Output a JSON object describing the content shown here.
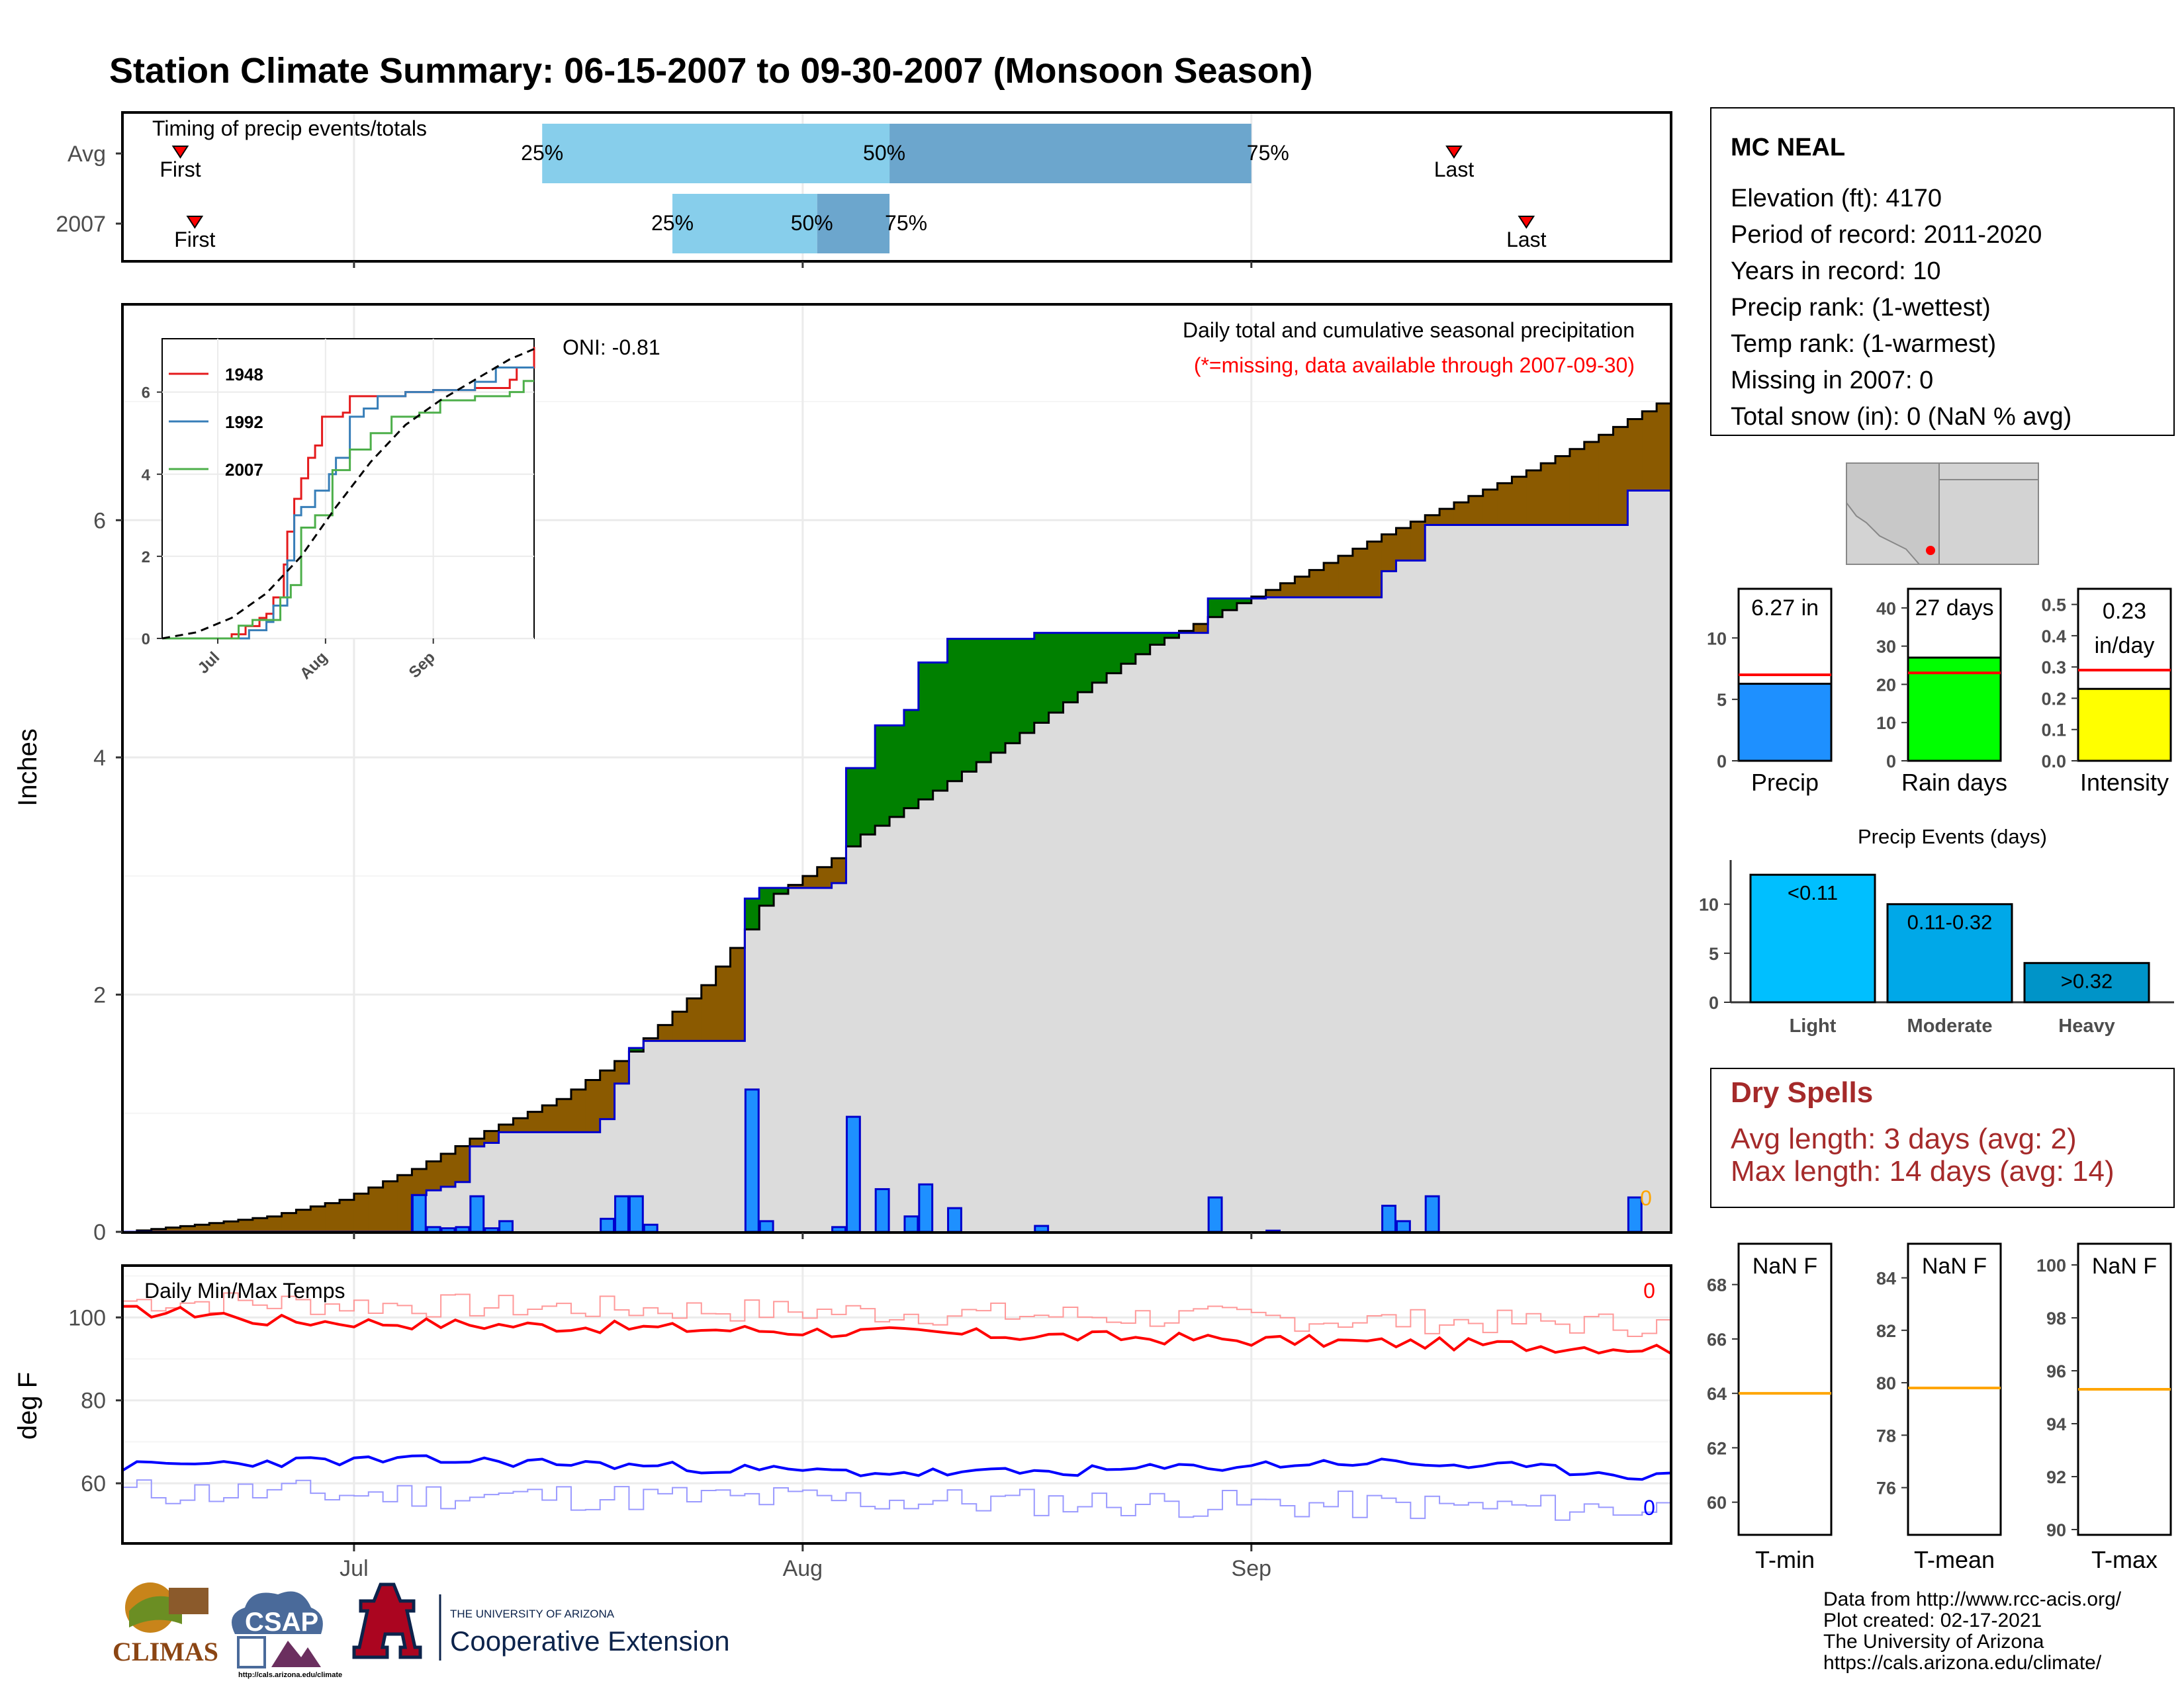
{
  "title": "Station Climate Summary: 06-15-2007 to 09-30-2007 (Monsoon Season)",
  "colors": {
    "title": "#ff0000",
    "brown_area": "#8b5a00",
    "green_area": "#008000",
    "gray_area": "#dcdcdc",
    "blue_line": "#0000cd",
    "precip_bar": "#1e90ff",
    "rain_days_bar": "#00ff00",
    "intensity_bar": "#ffff00",
    "avg_line": "#ff0000",
    "light_bar": "#00bfff",
    "moderate_bar": "#00a8e8",
    "heavy_bar": "#0094c8",
    "orange": "#ffa500",
    "dry_spells": "#a52a2a",
    "timing_25_50": "#87ceeb",
    "timing_50_75": "#6ca6cd",
    "tmax_line": "#ff0000",
    "tmin_line": "#0000ff"
  },
  "timing": {
    "label": "Timing of precip events/totals",
    "rows": [
      {
        "name": "Avg",
        "first_label": "First",
        "last_label": "Last",
        "first_date": "2007-06-19",
        "q25": "2007-07-14",
        "q50": "2007-08-07",
        "q75": "2007-09-01",
        "last_date": "2007-09-15",
        "p25_label": "25%",
        "p50_label": "50%",
        "p75_label": "75%"
      },
      {
        "name": "2007",
        "first_label": "First",
        "last_label": "Last",
        "first_date": "2007-06-20",
        "q25": "2007-07-23",
        "q50": "2007-08-02",
        "q75": "2007-08-07",
        "last_date": "2007-09-20",
        "p25_label": "25%",
        "p50_label": "50%",
        "p75_label": "75%"
      }
    ]
  },
  "main": {
    "ylabel": "Inches",
    "oni": "ONI: -0.81",
    "note1": "Daily total and cumulative seasonal precipitation",
    "note2": "(*=missing, data available through 2007-09-30)",
    "missing_count": "0",
    "y_ticks": [
      "0",
      "2",
      "4",
      "6"
    ],
    "x_ticks": [
      "Jul",
      "Aug",
      "Sep"
    ]
  },
  "inset": {
    "legend": [
      "1948",
      "1992",
      "2007"
    ],
    "y_ticks": [
      "0",
      "2",
      "4",
      "6"
    ],
    "x_ticks": [
      "Jul",
      "Aug",
      "Sep"
    ]
  },
  "temps": {
    "label": "Daily Min/Max Temps",
    "ylabel": "deg F",
    "missing_max": "0",
    "missing_min": "0",
    "y_ticks": [
      "60",
      "80",
      "100"
    ],
    "x_ticks": [
      "Jul",
      "Aug",
      "Sep"
    ]
  },
  "station": {
    "name": "MC NEAL",
    "lines": [
      "Elevation (ft): 4170",
      "Period of record: 2011-2020",
      "Years in record: 10",
      "Precip rank:  (1-wettest)",
      "Temp rank:  (1-warmest)",
      "Missing in 2007: 0",
      "Total snow (in): 0 (NaN % avg)"
    ]
  },
  "summary_bars": [
    {
      "name": "Precip",
      "label": "6.27 in",
      "value": 6.27,
      "avg": 7.0,
      "ymax": 14,
      "ticks": [
        "0",
        "5",
        "10"
      ],
      "tick_values": [
        0,
        5,
        10
      ]
    },
    {
      "name": "Rain days",
      "label": "27 days",
      "value": 27,
      "avg": 23,
      "ymax": 45,
      "ticks": [
        "0",
        "10",
        "20",
        "30",
        "40"
      ],
      "tick_values": [
        0,
        10,
        20,
        30,
        40
      ]
    },
    {
      "name": "Intensity",
      "label_line1": "0.23",
      "label_line2": "in/day",
      "value": 0.23,
      "avg": 0.29,
      "ymax": 0.55,
      "ticks": [
        "0.0",
        "0.1",
        "0.2",
        "0.3",
        "0.4",
        "0.5"
      ],
      "tick_values": [
        0,
        0.1,
        0.2,
        0.3,
        0.4,
        0.5
      ]
    }
  ],
  "events": {
    "title": "Precip Events (days)",
    "categories": [
      "Light",
      "Moderate",
      "Heavy"
    ],
    "labels": [
      "<0.11",
      "0.11-0.32",
      ">0.32"
    ],
    "values": [
      13,
      10,
      4
    ],
    "ticks": [
      "0",
      "5",
      "10"
    ]
  },
  "dry_spells": {
    "title": "Dry Spells",
    "avg": "Avg length: 3 days (avg: 2)",
    "max": "Max length: 14 days (avg: 14)"
  },
  "temp_panels": [
    {
      "name": "T-min",
      "label": "NaN F",
      "avg": 64,
      "ticks": [
        "60",
        "62",
        "64",
        "66",
        "68"
      ],
      "tick_values": [
        60,
        62,
        64,
        66,
        68
      ],
      "ymin": 58.8,
      "ymax": 69.5
    },
    {
      "name": "T-mean",
      "label": "NaN F",
      "avg": 79.8,
      "ticks": [
        "76",
        "78",
        "80",
        "82",
        "84"
      ],
      "tick_values": [
        76,
        78,
        80,
        82,
        84
      ],
      "ymin": 74.2,
      "ymax": 85.3
    },
    {
      "name": "T-max",
      "label": "NaN F",
      "avg": 95.3,
      "ticks": [
        "90",
        "92",
        "94",
        "96",
        "98",
        "100"
      ],
      "tick_values": [
        90,
        92,
        94,
        96,
        98,
        100
      ],
      "ymin": 89.8,
      "ymax": 100.8
    }
  ],
  "credits": [
    "Data from http://www.rcc-acis.org/",
    "Plot created: 02-17-2021",
    "The University of Arizona",
    "https://cals.arizona.edu/climate/"
  ],
  "logos": {
    "climas": "CLIMAS",
    "csap": "CSAP",
    "csap_url": "http://cals.arizona.edu/climate",
    "ua_small": "THE UNIVERSITY OF ARIZONA",
    "ua_big": "Cooperative Extension"
  },
  "chart_data": {
    "type": "line",
    "x_start": "2007-06-15",
    "x_end": "2007-09-30",
    "daily_precip": [
      {
        "date": "2007-07-05",
        "value": 0.31
      },
      {
        "date": "2007-07-06",
        "value": 0.04
      },
      {
        "date": "2007-07-07",
        "value": 0.03
      },
      {
        "date": "2007-07-08",
        "value": 0.04
      },
      {
        "date": "2007-07-09",
        "value": 0.3
      },
      {
        "date": "2007-07-10",
        "value": 0.03
      },
      {
        "date": "2007-07-11",
        "value": 0.09
      },
      {
        "date": "2007-07-18",
        "value": 0.11
      },
      {
        "date": "2007-07-19",
        "value": 0.3
      },
      {
        "date": "2007-07-20",
        "value": 0.3
      },
      {
        "date": "2007-07-21",
        "value": 0.06
      },
      {
        "date": "2007-07-28",
        "value": 1.2
      },
      {
        "date": "2007-07-29",
        "value": 0.09
      },
      {
        "date": "2007-08-03",
        "value": 0.04
      },
      {
        "date": "2007-08-04",
        "value": 0.97
      },
      {
        "date": "2007-08-06",
        "value": 0.36
      },
      {
        "date": "2007-08-08",
        "value": 0.13
      },
      {
        "date": "2007-08-09",
        "value": 0.4
      },
      {
        "date": "2007-08-11",
        "value": 0.2
      },
      {
        "date": "2007-08-17",
        "value": 0.05
      },
      {
        "date": "2007-08-29",
        "value": 0.29
      },
      {
        "date": "2007-09-02",
        "value": 0.01
      },
      {
        "date": "2007-09-10",
        "value": 0.22
      },
      {
        "date": "2007-09-11",
        "value": 0.09
      },
      {
        "date": "2007-09-13",
        "value": 0.3
      },
      {
        "date": "2007-09-27",
        "value": 0.29
      }
    ],
    "avg_cumulative": [
      {
        "date": "2007-06-15",
        "value": 0.0
      },
      {
        "date": "2007-06-20",
        "value": 0.06
      },
      {
        "date": "2007-06-25",
        "value": 0.13
      },
      {
        "date": "2007-06-30",
        "value": 0.27
      },
      {
        "date": "2007-07-05",
        "value": 0.53
      },
      {
        "date": "2007-07-10",
        "value": 0.85
      },
      {
        "date": "2007-07-15",
        "value": 1.12
      },
      {
        "date": "2007-07-20",
        "value": 1.52
      },
      {
        "date": "2007-07-25",
        "value": 2.08
      },
      {
        "date": "2007-07-28",
        "value": 2.55
      },
      {
        "date": "2007-07-29",
        "value": 2.75
      },
      {
        "date": "2007-07-30",
        "value": 2.85
      },
      {
        "date": "2007-08-03",
        "value": 3.15
      },
      {
        "date": "2007-08-05",
        "value": 3.35
      },
      {
        "date": "2007-08-10",
        "value": 3.72
      },
      {
        "date": "2007-08-15",
        "value": 4.12
      },
      {
        "date": "2007-08-20",
        "value": 4.55
      },
      {
        "date": "2007-08-25",
        "value": 4.95
      },
      {
        "date": "2007-08-31",
        "value": 5.3
      },
      {
        "date": "2007-09-05",
        "value": 5.58
      },
      {
        "date": "2007-09-10",
        "value": 5.88
      },
      {
        "date": "2007-09-15",
        "value": 6.15
      },
      {
        "date": "2007-09-20",
        "value": 6.42
      },
      {
        "date": "2007-09-25",
        "value": 6.72
      },
      {
        "date": "2007-09-30",
        "value": 7.05
      }
    ],
    "inset_series": [
      {
        "name": "1948",
        "color": "#e41a1c",
        "points": [
          [
            0,
            0
          ],
          [
            18,
            0
          ],
          [
            20,
            0.1
          ],
          [
            24,
            0.3
          ],
          [
            28,
            0.5
          ],
          [
            30,
            0.6
          ],
          [
            32,
            1.0
          ],
          [
            35,
            1.8
          ],
          [
            36,
            2.6
          ],
          [
            38,
            3.4
          ],
          [
            40,
            3.9
          ],
          [
            42,
            4.4
          ],
          [
            44,
            4.7
          ],
          [
            46,
            5.4
          ],
          [
            52,
            5.5
          ],
          [
            54,
            5.9
          ],
          [
            70,
            6.0
          ],
          [
            78,
            6.05
          ],
          [
            90,
            6.1
          ],
          [
            100,
            6.3
          ],
          [
            102,
            6.6
          ],
          [
            107,
            7.1
          ]
        ]
      },
      {
        "name": "1992",
        "color": "#377eb8",
        "points": [
          [
            0,
            0
          ],
          [
            22,
            0
          ],
          [
            25,
            0.2
          ],
          [
            30,
            0.4
          ],
          [
            32,
            0.8
          ],
          [
            36,
            1.9
          ],
          [
            38,
            3.0
          ],
          [
            40,
            3.2
          ],
          [
            44,
            3.6
          ],
          [
            48,
            4.0
          ],
          [
            50,
            4.4
          ],
          [
            54,
            5.4
          ],
          [
            58,
            5.6
          ],
          [
            62,
            5.9
          ],
          [
            70,
            6.0
          ],
          [
            78,
            6.05
          ],
          [
            90,
            6.25
          ],
          [
            96,
            6.6
          ],
          [
            107,
            6.6
          ]
        ]
      },
      {
        "name": "2007",
        "color": "#4daf4a",
        "points": [
          [
            0,
            0
          ],
          [
            20,
            0
          ],
          [
            22,
            0.31
          ],
          [
            26,
            0.45
          ],
          [
            34,
            1.0
          ],
          [
            37,
            1.3
          ],
          [
            40,
            2.7
          ],
          [
            44,
            3.0
          ],
          [
            49,
            4.1
          ],
          [
            54,
            4.6
          ],
          [
            60,
            5.0
          ],
          [
            66,
            5.4
          ],
          [
            74,
            5.5
          ],
          [
            80,
            5.8
          ],
          [
            90,
            5.9
          ],
          [
            100,
            6.0
          ],
          [
            104,
            6.27
          ],
          [
            107,
            6.27
          ]
        ]
      }
    ],
    "inset_avg": [
      [
        0,
        0
      ],
      [
        10,
        0.15
      ],
      [
        20,
        0.5
      ],
      [
        30,
        1.1
      ],
      [
        40,
        2.0
      ],
      [
        50,
        3.2
      ],
      [
        60,
        4.3
      ],
      [
        70,
        5.2
      ],
      [
        80,
        5.8
      ],
      [
        90,
        6.3
      ],
      [
        100,
        6.8
      ],
      [
        107,
        7.05
      ]
    ]
  }
}
